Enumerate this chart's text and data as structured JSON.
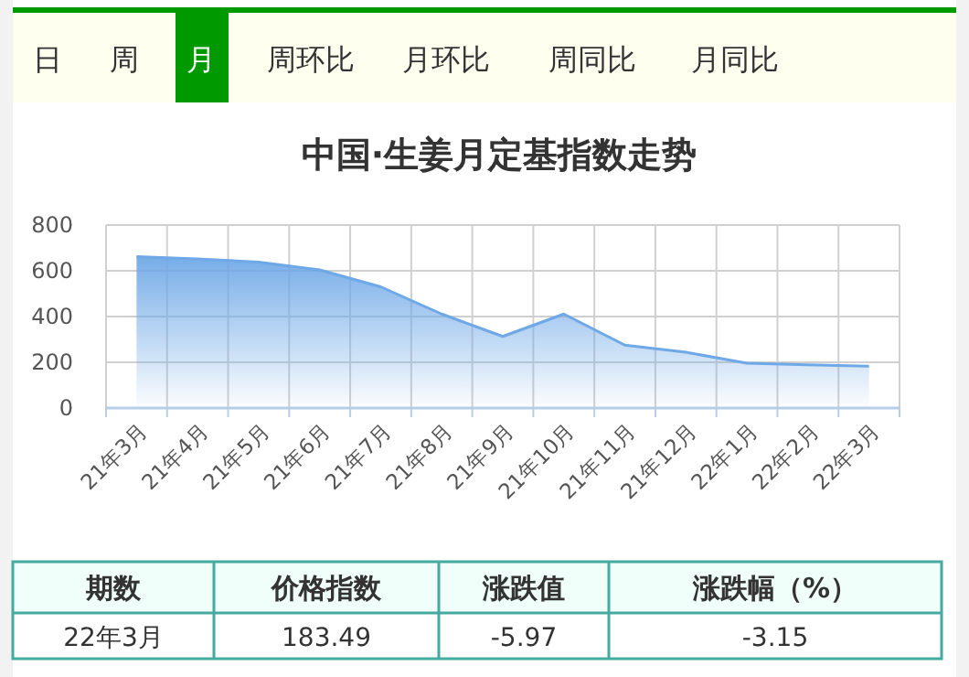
{
  "chart_data": {
    "type": "area",
    "title": "中国·生姜月定基指数走势",
    "categories": [
      "21年3月",
      "21年4月",
      "21年5月",
      "21年6月",
      "21年7月",
      "21年8月",
      "21年9月",
      "21年10月",
      "21年11月",
      "21年12月",
      "22年1月",
      "22年2月",
      "22年3月"
    ],
    "series": [
      {
        "color": "#6fa8e6",
        "values": [
          662,
          652,
          638,
          604,
          530,
          411,
          313,
          411,
          275,
          244,
          196,
          189,
          183
        ]
      }
    ],
    "ylim": [
      0,
      800
    ],
    "yticks": [
      0,
      200,
      400,
      600,
      800
    ],
    "grid": true,
    "annotations": [
      "日",
      "周",
      "月",
      "周环比",
      "月环比",
      "周同比",
      "月同比",
      "期数",
      "价格指数",
      "涨跌值",
      "涨跌幅（%）",
      "22年3月",
      "183.49",
      "-5.97",
      "-3.15"
    ]
  }
}
